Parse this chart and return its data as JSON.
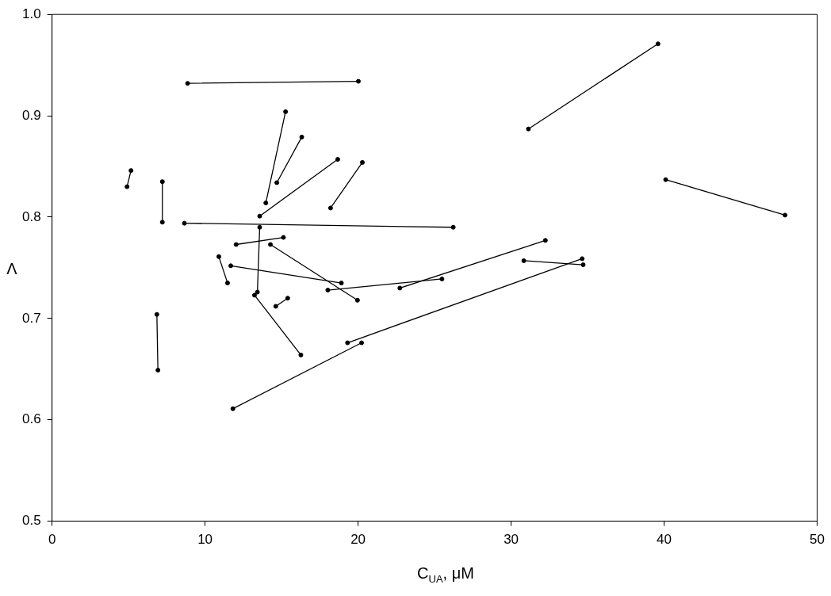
{
  "chart_data": {
    "type": "line",
    "xlabel": "C$_{UA}$, μM",
    "ylabel": "Λ",
    "xlim": [
      0,
      50
    ],
    "xticks": [
      0,
      10,
      20,
      30,
      40,
      50
    ],
    "ylim": [
      0.5,
      1.0
    ],
    "yticks": [
      0.5,
      0.6,
      0.7,
      0.8,
      0.9,
      {
        "value": 1.0,
        "label": "1.0"
      }
    ],
    "grid": false,
    "legend": false,
    "marker": "circle",
    "line_style": "solid",
    "series": [
      {
        "color": "#000000",
        "x": [
          8.86,
          20.02
        ],
        "values": [
          0.932,
          0.934
        ]
      },
      {
        "color": "#000000",
        "x": [
          15.26,
          13.97
        ],
        "values": [
          0.904,
          0.814
        ]
      },
      {
        "color": "#000000",
        "x": [
          16.32,
          14.69
        ],
        "values": [
          0.879,
          0.834
        ]
      },
      {
        "color": "#000000",
        "x": [
          18.67,
          13.57
        ],
        "values": [
          0.857,
          0.801
        ]
      },
      {
        "color": "#000000",
        "x": [
          20.28,
          18.2
        ],
        "values": [
          0.854,
          0.809
        ]
      },
      {
        "color": "#000000",
        "x": [
          5.16,
          4.9
        ],
        "values": [
          0.846,
          0.83
        ]
      },
      {
        "color": "#000000",
        "x": [
          7.21,
          7.21
        ],
        "values": [
          0.835,
          0.795
        ]
      },
      {
        "color": "#000000",
        "x": [
          8.65,
          26.22
        ],
        "values": [
          0.794,
          0.79
        ]
      },
      {
        "color": "#000000",
        "x": [
          13.57,
          13.42
        ],
        "values": [
          0.79,
          0.726
        ]
      },
      {
        "color": "#000000",
        "x": [
          12.03,
          15.12
        ],
        "values": [
          0.773,
          0.78
        ]
      },
      {
        "color": "#000000",
        "x": [
          14.27,
          19.96
        ],
        "values": [
          0.773,
          0.718
        ]
      },
      {
        "color": "#000000",
        "x": [
          10.9,
          11.47
        ],
        "values": [
          0.761,
          0.735
        ]
      },
      {
        "color": "#000000",
        "x": [
          11.68,
          18.91
        ],
        "values": [
          0.752,
          0.735
        ]
      },
      {
        "color": "#000000",
        "x": [
          18.02,
          25.48
        ],
        "values": [
          0.728,
          0.739
        ]
      },
      {
        "color": "#000000",
        "x": [
          13.23,
          16.26
        ],
        "values": [
          0.723,
          0.664
        ]
      },
      {
        "color": "#000000",
        "x": [
          14.62,
          15.4
        ],
        "values": [
          0.712,
          0.72
        ]
      },
      {
        "color": "#000000",
        "x": [
          6.85,
          6.92
        ],
        "values": [
          0.704,
          0.649
        ]
      },
      {
        "color": "#000000",
        "x": [
          19.31,
          34.64
        ],
        "values": [
          0.676,
          0.759
        ]
      },
      {
        "color": "#000000",
        "x": [
          20.23,
          11.82
        ],
        "values": [
          0.676,
          0.611
        ]
      },
      {
        "color": "#000000",
        "x": [
          22.73,
          32.24
        ],
        "values": [
          0.73,
          0.777
        ]
      },
      {
        "color": "#000000",
        "x": [
          30.83,
          34.71
        ],
        "values": [
          0.757,
          0.753
        ]
      },
      {
        "color": "#000000",
        "x": [
          31.13,
          39.6
        ],
        "values": [
          0.887,
          0.971
        ]
      },
      {
        "color": "#000000",
        "x": [
          40.1,
          47.9
        ],
        "values": [
          0.837,
          0.802
        ]
      }
    ]
  }
}
